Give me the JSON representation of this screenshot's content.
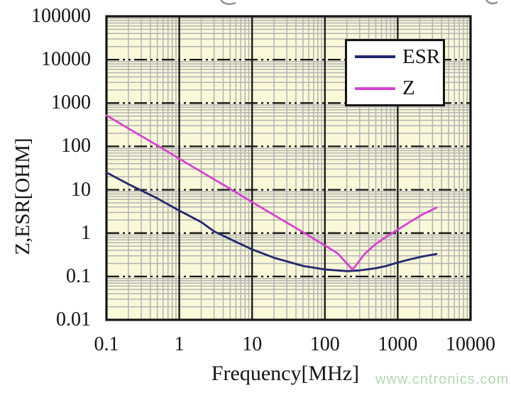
{
  "watermark": {
    "text": "www.cntronics.com",
    "color": "#b5d6b5"
  },
  "chart_data": {
    "type": "line",
    "title": "",
    "xlabel": "Frequency[MHz]",
    "ylabel": "Z,ESR[OHM]",
    "x_scale": "log",
    "y_scale": "log",
    "xlim": [
      0.1,
      10000
    ],
    "ylim": [
      0.01,
      100000
    ],
    "x_ticks": [
      "0.1",
      "1",
      "10",
      "100",
      "1000",
      "10000"
    ],
    "y_ticks": [
      "100000",
      "10000",
      "1000",
      "100",
      "10",
      "1",
      "0.1",
      "0.01"
    ],
    "grid": {
      "minor": true,
      "background": "#f9f8d9",
      "minor_color": "#b3b3b3",
      "major_color": "#141414",
      "major_horizontal_style": "dashed",
      "major_vertical_style": "solid"
    },
    "legend": {
      "position": "top-right",
      "items": [
        {
          "label": "ESR",
          "color": "#23276d"
        },
        {
          "label": "Z",
          "color": "#d843cf"
        }
      ]
    },
    "series": [
      {
        "name": "ESR",
        "color": "#23276d",
        "points": [
          [
            0.1,
            25
          ],
          [
            0.2,
            13.5
          ],
          [
            0.5,
            6.3
          ],
          [
            1,
            3.3
          ],
          [
            2,
            1.8
          ],
          [
            3,
            1.1
          ],
          [
            5,
            0.73
          ],
          [
            10,
            0.42
          ],
          [
            20,
            0.27
          ],
          [
            50,
            0.175
          ],
          [
            100,
            0.145
          ],
          [
            150,
            0.138
          ],
          [
            200,
            0.133
          ],
          [
            300,
            0.138
          ],
          [
            500,
            0.155
          ],
          [
            700,
            0.175
          ],
          [
            1000,
            0.21
          ],
          [
            1500,
            0.25
          ],
          [
            2200,
            0.29
          ],
          [
            3400,
            0.33
          ]
        ]
      },
      {
        "name": "Z",
        "color": "#d843cf",
        "points": [
          [
            0.1,
            520
          ],
          [
            0.2,
            260
          ],
          [
            0.5,
            105
          ],
          [
            1,
            52
          ],
          [
            2,
            26
          ],
          [
            5,
            10.5
          ],
          [
            10,
            5.2
          ],
          [
            20,
            2.6
          ],
          [
            50,
            1.05
          ],
          [
            100,
            0.52
          ],
          [
            150,
            0.34
          ],
          [
            200,
            0.2
          ],
          [
            240,
            0.145
          ],
          [
            280,
            0.2
          ],
          [
            350,
            0.33
          ],
          [
            500,
            0.56
          ],
          [
            700,
            0.83
          ],
          [
            1000,
            1.2
          ],
          [
            1500,
            1.85
          ],
          [
            2200,
            2.7
          ],
          [
            3400,
            3.85
          ]
        ]
      }
    ]
  }
}
